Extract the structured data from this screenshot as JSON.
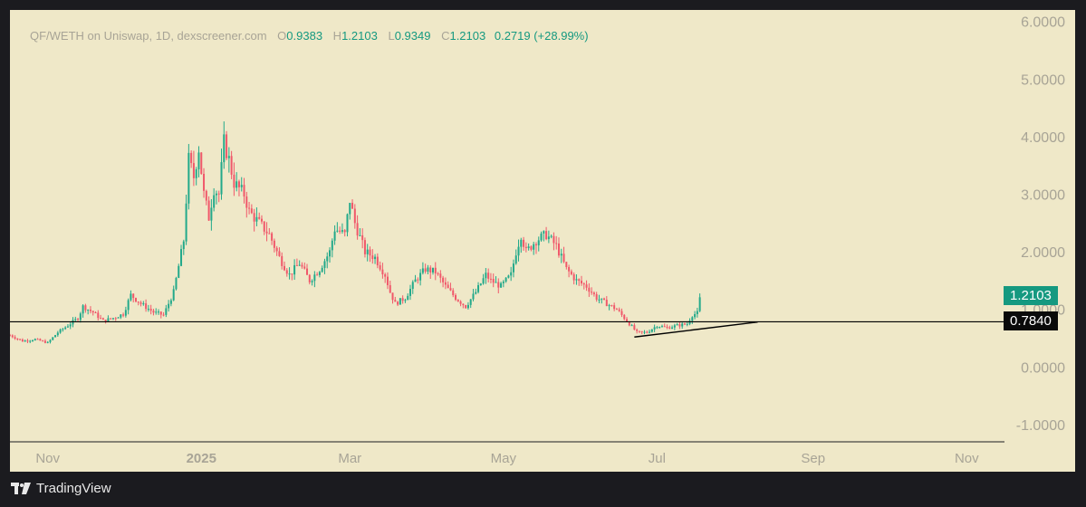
{
  "legend": {
    "symbol": "QF/WETH on Uniswap, 1D, dexscreener.com",
    "o_key": "O",
    "o_val": "0.9383",
    "h_key": "H",
    "h_val": "1.2103",
    "l_key": "L",
    "l_val": "0.9349",
    "c_key": "C",
    "c_val": "1.2103",
    "change": "0.2719 (+28.99%)"
  },
  "price_tags": {
    "last": "1.2103",
    "line": "0.7840"
  },
  "colors": {
    "background": "#efe8c8",
    "up": "#22a98a",
    "down": "#f0586a",
    "last_tag": "#159980",
    "line_tag": "#0a0a0a",
    "frame": "#1b1b1f"
  },
  "footer": {
    "brand": "TradingView",
    "logo": "tradingview-logo-icon"
  },
  "chart_data": {
    "type": "candlestick",
    "title": "QF/WETH on Uniswap, 1D, dexscreener.com",
    "y_ticks": [
      "6.0000",
      "5.0000",
      "4.0000",
      "3.0000",
      "2.0000",
      "1.0000",
      "0.0000",
      "-1.0000"
    ],
    "y_tick_values": [
      6,
      5,
      4,
      3,
      2,
      1,
      0,
      -1
    ],
    "ylim": [
      -1.3,
      6.2
    ],
    "x_ticks": [
      {
        "label": "Nov",
        "day": 0,
        "bold": false
      },
      {
        "label": "2025",
        "day": 61,
        "bold": true
      },
      {
        "label": "Mar",
        "day": 120,
        "bold": false
      },
      {
        "label": "May",
        "day": 181,
        "bold": false
      },
      {
        "label": "Jul",
        "day": 242,
        "bold": false
      },
      {
        "label": "Sep",
        "day": 304,
        "bold": false
      },
      {
        "label": "Nov",
        "day": 365,
        "bold": false
      }
    ],
    "xlim_days": [
      -15,
      380
    ],
    "horizontal_line": 0.784,
    "trendline": {
      "from": {
        "day": 233,
        "value": 0.52
      },
      "to": {
        "day": 282,
        "value": 0.78
      }
    },
    "last_close": 1.2103,
    "waypoints": [
      [
        -15,
        0.55
      ],
      [
        -10,
        0.45
      ],
      [
        -5,
        0.48
      ],
      [
        0,
        0.42
      ],
      [
        4,
        0.6
      ],
      [
        8,
        0.72
      ],
      [
        12,
        0.85
      ],
      [
        14,
        1.05
      ],
      [
        18,
        0.95
      ],
      [
        22,
        0.8
      ],
      [
        26,
        0.85
      ],
      [
        30,
        0.92
      ],
      [
        33,
        1.25
      ],
      [
        37,
        1.1
      ],
      [
        42,
        0.95
      ],
      [
        46,
        0.9
      ],
      [
        50,
        1.3
      ],
      [
        54,
        2.2
      ],
      [
        56,
        3.6
      ],
      [
        58,
        3.3
      ],
      [
        60,
        3.8
      ],
      [
        62,
        3.0
      ],
      [
        64,
        2.6
      ],
      [
        66,
        3.1
      ],
      [
        68,
        3.0
      ],
      [
        70,
        3.9
      ],
      [
        72,
        3.6
      ],
      [
        74,
        3.2
      ],
      [
        78,
        3.0
      ],
      [
        80,
        2.7
      ],
      [
        84,
        2.5
      ],
      [
        88,
        2.3
      ],
      [
        92,
        1.9
      ],
      [
        96,
        1.6
      ],
      [
        100,
        1.8
      ],
      [
        104,
        1.5
      ],
      [
        108,
        1.7
      ],
      [
        112,
        2.0
      ],
      [
        114,
        2.4
      ],
      [
        118,
        2.3
      ],
      [
        120,
        2.9
      ],
      [
        122,
        2.5
      ],
      [
        126,
        2.0
      ],
      [
        130,
        1.9
      ],
      [
        134,
        1.6
      ],
      [
        136,
        1.3
      ],
      [
        138,
        1.1
      ],
      [
        142,
        1.2
      ],
      [
        146,
        1.5
      ],
      [
        150,
        1.7
      ],
      [
        154,
        1.65
      ],
      [
        158,
        1.4
      ],
      [
        162,
        1.2
      ],
      [
        166,
        1.05
      ],
      [
        170,
        1.3
      ],
      [
        174,
        1.6
      ],
      [
        176,
        1.5
      ],
      [
        180,
        1.4
      ],
      [
        184,
        1.6
      ],
      [
        186,
        2.0
      ],
      [
        188,
        2.3
      ],
      [
        190,
        2.0
      ],
      [
        194,
        2.2
      ],
      [
        198,
        2.3
      ],
      [
        202,
        2.1
      ],
      [
        206,
        1.7
      ],
      [
        210,
        1.5
      ],
      [
        214,
        1.4
      ],
      [
        218,
        1.2
      ],
      [
        222,
        1.1
      ],
      [
        226,
        1.0
      ],
      [
        230,
        0.8
      ],
      [
        234,
        0.6
      ],
      [
        238,
        0.6
      ],
      [
        242,
        0.72
      ],
      [
        246,
        0.68
      ],
      [
        250,
        0.72
      ],
      [
        254,
        0.75
      ],
      [
        256,
        0.9
      ],
      [
        258,
        0.9376
      ],
      [
        259,
        1.2103
      ]
    ]
  }
}
